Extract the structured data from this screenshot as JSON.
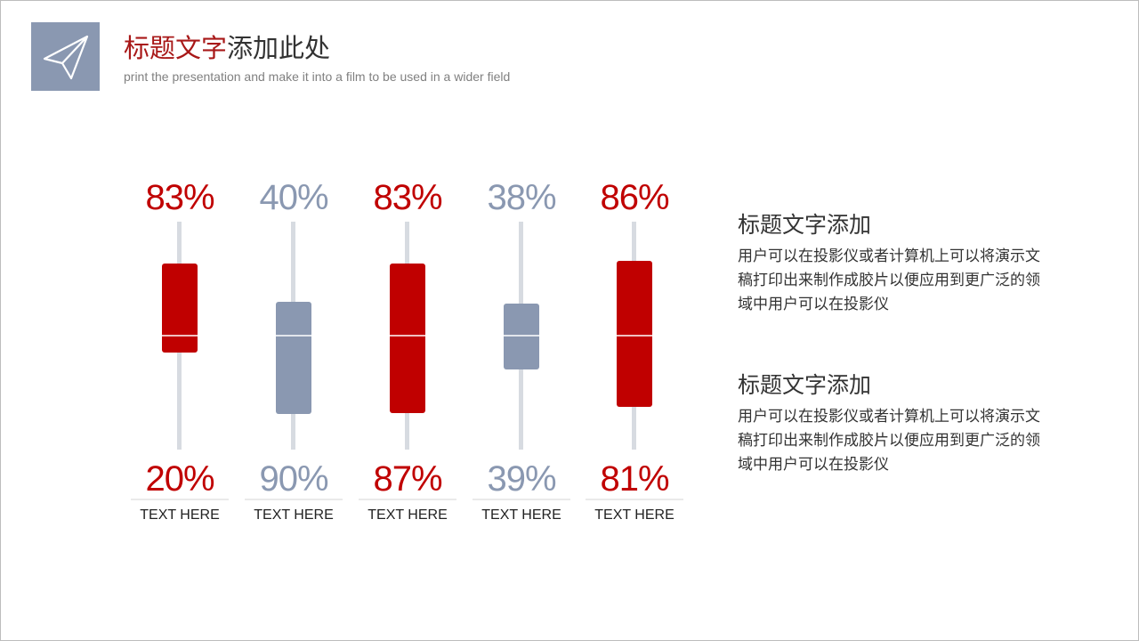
{
  "header": {
    "title_accent": "标题文字",
    "title_rest": "添加此处",
    "subtitle": "print the presentation and make it into a film to be used in a wider field",
    "icon": "paper-plane-icon"
  },
  "chart_data": {
    "type": "table",
    "columns": [
      {
        "top": "83%",
        "bottom": "20%",
        "label": "TEXT HERE",
        "color": "#c00000"
      },
      {
        "top": "40%",
        "bottom": "90%",
        "label": "TEXT HERE",
        "color": "#8a98b1"
      },
      {
        "top": "83%",
        "bottom": "87%",
        "label": "TEXT HERE",
        "color": "#c00000"
      },
      {
        "top": "38%",
        "bottom": "39%",
        "label": "TEXT HERE",
        "color": "#8a98b1"
      },
      {
        "top": "86%",
        "bottom": "81%",
        "label": "TEXT HERE",
        "color": "#c00000"
      }
    ]
  },
  "sections": [
    {
      "title": "标题文字添加",
      "body": "用户可以在投影仪或者计算机上可以将演示文稿打印出来制作成胶片以便应用到更广泛的领域中用户可以在投影仪"
    },
    {
      "title": "标题文字添加",
      "body": "用户可以在投影仪或者计算机上可以将演示文稿打印出来制作成胶片以便应用到更广泛的领域中用户可以在投影仪"
    }
  ],
  "colors": {
    "accent_red": "#c00000",
    "accent_gray": "#8a98b1",
    "track": "#d7dbe1",
    "title_red": "#a81818"
  }
}
